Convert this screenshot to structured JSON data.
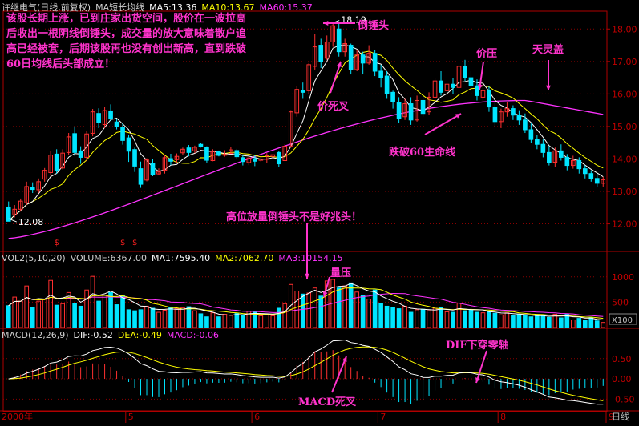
{
  "colors": {
    "up": "#ff3030",
    "down": "#00e5ff",
    "ma5": "#ffffff",
    "ma10": "#ffff00",
    "ma60": "#ff33ff",
    "vol_ma1": "#ffffff",
    "vol_ma2": "#ffff00",
    "vol_ma3": "#ff33ff",
    "grid": "#8b0000",
    "axis": "#b00000",
    "annotation": "#ff33cc",
    "bg": "#000000"
  },
  "price_header": {
    "title": "许继电气(日线,前复权)",
    "ma_label": "MA短长均线",
    "ma5": "MA5:13.36",
    "ma10": "MA10:13.67",
    "ma60": "MA60:15.37"
  },
  "volume_header": {
    "title": "VOL2(5,10,20)",
    "volume": "VOLUME:6367.00",
    "ma1": "MA1:7595.40",
    "ma2": "MA2:7062.70",
    "ma3": "MA3:10154.15"
  },
  "macd_header": {
    "title": "MACD(12,26,9)",
    "dif": "DIF:-0.52",
    "dea": "DEA:-0.49",
    "macd": "MACD:-0.06"
  },
  "footer": {
    "year_label": "2000年",
    "months": [
      "5",
      "6",
      "7",
      "8",
      "9"
    ],
    "period": "日线"
  },
  "volume_unit": "X100",
  "annotations": {
    "essay": "该股长期上涨，已到庄家出货空间，股价在一波拉高后收出一根阴线倒锤头，成交量的放大意味着散户追高已经被套，后期该股再也没有创出新高，直到跌破60日均线后头部成立！",
    "hammer": "倒锤头",
    "death_cross": "价死叉",
    "price_pressure": "价压",
    "sky_cover": "天灵盖",
    "break60": "跌破60生命线",
    "high_hammer": "高位放量倒锤头不是好兆头！",
    "vol_pressure": "量压",
    "dif_zero": "DIF下穿零轴",
    "macd_death": "MACD死叉"
  },
  "chart_data": {
    "type": "candlestick",
    "markers": {
      "high": "18.19",
      "low": "12.08",
      "signal_glyph": "$"
    },
    "price_axis": {
      "ylim": [
        11.2,
        18.5
      ],
      "ticks": [
        "12.00",
        "13.00",
        "14.00",
        "15.00",
        "16.00",
        "17.00",
        "18.00"
      ]
    },
    "volume_axis": {
      "ylim": [
        0,
        1250
      ],
      "ticks": [
        "500",
        "1000"
      ]
    },
    "macd_axis": {
      "ylim": [
        -0.75,
        0.95
      ],
      "ticks": [
        "-0.50",
        "0.00",
        "0.50"
      ]
    },
    "candles": [
      [
        12.52,
        12.08,
        12.69,
        12.16
      ],
      [
        12.28,
        12.45,
        12.58,
        12.2
      ],
      [
        12.45,
        12.7,
        12.78,
        12.38
      ],
      [
        12.65,
        13.15,
        13.3,
        12.58
      ],
      [
        13.12,
        13.06,
        13.28,
        12.95
      ],
      [
        13.05,
        13.3,
        13.4,
        12.95
      ],
      [
        13.38,
        13.65,
        13.72,
        13.3
      ],
      [
        13.58,
        14.12,
        14.25,
        13.5
      ],
      [
        14.15,
        13.65,
        14.3,
        13.55
      ],
      [
        13.72,
        14.18,
        14.3,
        13.68
      ],
      [
        14.2,
        14.68,
        14.8,
        14.12
      ],
      [
        14.78,
        14.2,
        15.0,
        14.1
      ],
      [
        14.25,
        14.05,
        14.39,
        13.85
      ],
      [
        14.05,
        14.77,
        14.86,
        13.93
      ],
      [
        14.79,
        15.45,
        15.54,
        14.7
      ],
      [
        15.4,
        15.11,
        15.56,
        14.95
      ],
      [
        15.06,
        15.49,
        15.61,
        14.95
      ],
      [
        15.48,
        15.23,
        15.68,
        15.17
      ],
      [
        15.14,
        14.99,
        15.24,
        14.91
      ],
      [
        14.97,
        14.57,
        15.12,
        14.44
      ],
      [
        14.65,
        14.24,
        14.75,
        13.91
      ],
      [
        14.29,
        13.78,
        14.35,
        13.6
      ],
      [
        13.7,
        13.22,
        13.92,
        13.11
      ],
      [
        13.35,
        13.97,
        14.02,
        13.31
      ],
      [
        13.87,
        13.51,
        14.0,
        13.47
      ],
      [
        13.54,
        13.6,
        13.71,
        13.51
      ],
      [
        13.65,
        14.04,
        14.12,
        13.55
      ],
      [
        14.01,
        13.93,
        14.16,
        13.81
      ],
      [
        13.98,
        14.08,
        14.17,
        13.87
      ],
      [
        14.19,
        14.3,
        14.35,
        14.13
      ],
      [
        14.34,
        14.2,
        14.43,
        14.08
      ],
      [
        14.25,
        14.36,
        14.41,
        14.18
      ],
      [
        14.45,
        14.39,
        14.48,
        14.35
      ],
      [
        14.36,
        13.96,
        14.39,
        13.89
      ],
      [
        13.95,
        14.23,
        14.3,
        13.93
      ],
      [
        14.22,
        14.11,
        14.26,
        14.08
      ],
      [
        14.13,
        14.14,
        14.27,
        14.07
      ],
      [
        14.17,
        14.28,
        14.37,
        14.16
      ],
      [
        14.26,
        14.07,
        14.31,
        14.01
      ],
      [
        14.04,
        13.92,
        14.13,
        13.8
      ],
      [
        13.89,
        14.03,
        14.07,
        13.81
      ],
      [
        14.01,
        13.93,
        14.12,
        13.78
      ],
      [
        13.96,
        14.0,
        14.09,
        13.92
      ],
      [
        13.99,
        14.1,
        14.18,
        13.87
      ],
      [
        14.08,
        14.13,
        14.14,
        14.05
      ],
      [
        14.2,
        13.85,
        14.25,
        13.75
      ],
      [
        13.95,
        14.39,
        14.45,
        13.95
      ],
      [
        14.4,
        15.45,
        15.5,
        14.35
      ],
      [
        15.42,
        16.14,
        16.25,
        15.3
      ],
      [
        16.1,
        16.05,
        16.35,
        15.85
      ],
      [
        16.1,
        16.9,
        16.95,
        16.0
      ],
      [
        16.85,
        17.45,
        17.85,
        16.75
      ],
      [
        17.5,
        17.0,
        17.7,
        16.8
      ],
      [
        17.1,
        17.6,
        17.8,
        17.05
      ],
      [
        17.6,
        18.1,
        18.19,
        17.45
      ],
      [
        18.0,
        17.3,
        18.19,
        17.15
      ],
      [
        17.3,
        17.55,
        17.7,
        17.15
      ],
      [
        17.5,
        16.75,
        17.55,
        16.6
      ],
      [
        16.75,
        17.2,
        17.35,
        16.7
      ],
      [
        17.2,
        16.95,
        17.3,
        16.6
      ],
      [
        16.95,
        17.25,
        17.5,
        16.9
      ],
      [
        17.25,
        16.7,
        17.35,
        16.55
      ],
      [
        16.7,
        16.5,
        16.9,
        16.2
      ],
      [
        16.55,
        16.0,
        16.7,
        15.85
      ],
      [
        16.05,
        15.75,
        16.1,
        15.55
      ],
      [
        15.75,
        15.25,
        15.9,
        15.1
      ],
      [
        15.3,
        15.7,
        15.85,
        15.2
      ],
      [
        15.7,
        15.2,
        15.9,
        15.05
      ],
      [
        15.2,
        15.8,
        15.95,
        15.15
      ],
      [
        15.8,
        15.4,
        15.95,
        15.3
      ],
      [
        15.45,
        15.9,
        16.05,
        15.35
      ],
      [
        15.9,
        16.4,
        16.5,
        15.8
      ],
      [
        16.4,
        16.05,
        16.7,
        15.95
      ],
      [
        16.1,
        16.3,
        16.85,
        16.0
      ],
      [
        16.3,
        16.2,
        16.5,
        16.0
      ],
      [
        16.2,
        16.85,
        16.95,
        16.15
      ],
      [
        16.85,
        16.5,
        17.05,
        16.4
      ],
      [
        16.5,
        16.25,
        16.7,
        16.1
      ],
      [
        16.25,
        15.95,
        16.45,
        15.8
      ],
      [
        15.9,
        16.1,
        16.4,
        15.75
      ],
      [
        16.1,
        15.6,
        16.25,
        15.45
      ],
      [
        15.6,
        15.15,
        15.75,
        15.0
      ],
      [
        15.15,
        15.45,
        15.55,
        14.95
      ],
      [
        15.45,
        15.55,
        15.75,
        15.3
      ],
      [
        15.55,
        15.35,
        15.65,
        15.2
      ],
      [
        15.35,
        15.2,
        15.5,
        15.05
      ],
      [
        15.2,
        14.9,
        15.4,
        14.8
      ],
      [
        14.9,
        14.6,
        15.1,
        14.5
      ],
      [
        14.6,
        14.45,
        14.75,
        14.3
      ],
      [
        14.45,
        14.2,
        14.6,
        14.05
      ],
      [
        14.2,
        13.9,
        14.4,
        13.8
      ],
      [
        13.9,
        14.25,
        14.35,
        13.75
      ],
      [
        14.25,
        14.05,
        14.45,
        13.95
      ],
      [
        14.05,
        13.8,
        14.15,
        13.65
      ],
      [
        13.8,
        13.95,
        14.1,
        13.7
      ],
      [
        13.95,
        13.7,
        14.05,
        13.55
      ],
      [
        13.7,
        13.55,
        13.8,
        13.4
      ],
      [
        13.55,
        13.4,
        13.65,
        13.3
      ],
      [
        13.4,
        13.25,
        13.55,
        13.15
      ],
      [
        13.25,
        13.36,
        13.45,
        13.15
      ]
    ],
    "volume": [
      430,
      600,
      520,
      820,
      390,
      520,
      560,
      930,
      440,
      470,
      690,
      480,
      420,
      740,
      1010,
      520,
      640,
      690,
      450,
      630,
      350,
      330,
      350,
      420,
      380,
      300,
      340,
      400,
      370,
      390,
      410,
      330,
      270,
      210,
      290,
      210,
      260,
      240,
      280,
      250,
      320,
      300,
      230,
      250,
      230,
      380,
      470,
      850,
      720,
      660,
      680,
      780,
      620,
      920,
      950,
      780,
      820,
      880,
      700,
      640,
      560,
      740,
      480,
      420,
      390,
      370,
      420,
      300,
      350,
      360,
      330,
      380,
      400,
      310,
      300,
      480,
      330,
      340,
      300,
      290,
      310,
      280,
      250,
      290,
      240,
      260,
      230,
      210,
      230,
      240,
      200,
      260,
      190,
      260,
      150,
      180,
      150,
      190,
      130,
      100
    ],
    "ma_values": {
      "ma5": 13.36,
      "ma10": 13.67,
      "ma60": 15.37
    }
  }
}
